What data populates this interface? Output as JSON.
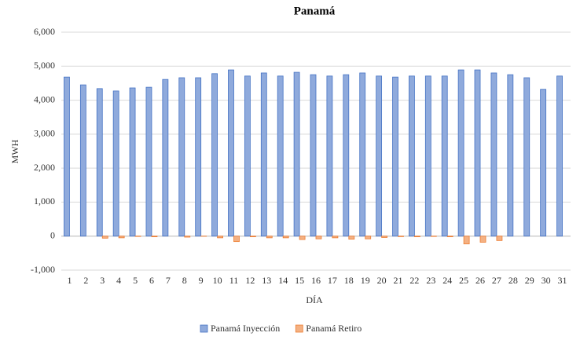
{
  "chart_data": {
    "type": "bar",
    "title": "Panamá",
    "x_label": "DÍA",
    "y_label": "MWH",
    "categories": [
      "1",
      "2",
      "3",
      "4",
      "5",
      "6",
      "7",
      "8",
      "9",
      "10",
      "11",
      "12",
      "13",
      "14",
      "15",
      "16",
      "17",
      "18",
      "19",
      "20",
      "21",
      "22",
      "23",
      "24",
      "25",
      "26",
      "27",
      "28",
      "29",
      "30",
      "31"
    ],
    "series": [
      {
        "name": "Panamá Inyección",
        "color": "#8faadc",
        "border": "#4472c4",
        "values": [
          4680,
          4450,
          4340,
          4270,
          4360,
          4380,
          4610,
          4660,
          4660,
          4780,
          4890,
          4710,
          4800,
          4710,
          4820,
          4750,
          4710,
          4750,
          4800,
          4710,
          4680,
          4710,
          4710,
          4710,
          4890,
          4890,
          4800,
          4750,
          4660,
          4320,
          4710
        ]
      },
      {
        "name": "Panamá Retiro",
        "color": "#f4b183",
        "border": "#ed7d31",
        "values": [
          0,
          0,
          -60,
          -50,
          -10,
          -20,
          0,
          -30,
          -5,
          -50,
          -160,
          -20,
          -50,
          -50,
          -100,
          -80,
          -50,
          -90,
          -80,
          -40,
          -15,
          -20,
          -10,
          -20,
          -230,
          -180,
          -130,
          0,
          0,
          0,
          0
        ]
      }
    ],
    "ylim": [
      -1000,
      6000
    ],
    "yticks": [
      {
        "value": -1000,
        "label": "-1,000"
      },
      0,
      {
        "value": 1000,
        "label": "1,000"
      },
      {
        "value": 2000,
        "label": "2,000"
      },
      {
        "value": 3000,
        "label": "3,000"
      },
      {
        "value": 4000,
        "label": "4,000"
      },
      {
        "value": 5000,
        "label": "5,000"
      },
      {
        "value": 6000,
        "label": "6,000"
      }
    ],
    "grid": true,
    "legend": "bottom"
  }
}
